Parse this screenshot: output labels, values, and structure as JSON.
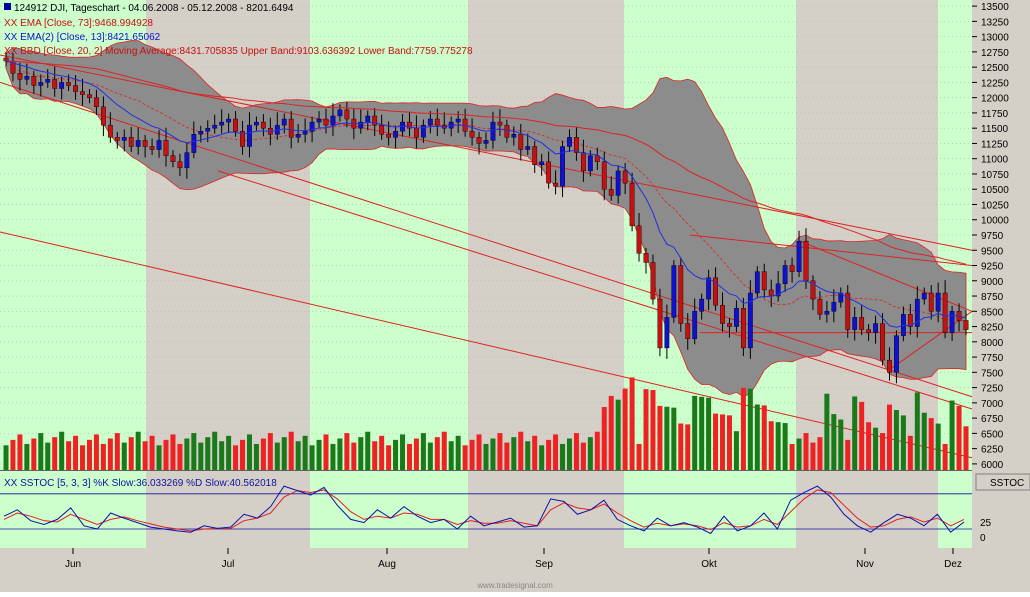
{
  "chart_data": {
    "type": "candlestick",
    "header": {
      "symbol_line": "124912 DJI, Tageschart - 04.06.2008 - 05.12.2008 - 8201.6494",
      "ema73": "EMA [Close, 73]:9468.994928",
      "ema13": "EMA(2) [Close, 13]:8421.65062",
      "bbd": "BBD [Close, 20, 2] Moving Average:8431.705835 Upper Band:9103.636392 Lower Band:7759.775278",
      "prefix": "XX"
    },
    "price_axis": {
      "ticks": [
        6000,
        6250,
        6500,
        6750,
        7000,
        7250,
        7500,
        7750,
        8000,
        8250,
        8500,
        8750,
        9000,
        9250,
        9500,
        9750,
        10000,
        10250,
        10500,
        10750,
        11000,
        11250,
        11500,
        11750,
        12000,
        12250,
        12500,
        12750,
        13000,
        13250,
        13500
      ],
      "ylim": [
        5900,
        13600
      ]
    },
    "months": [
      "Jun",
      "Jul",
      "Aug",
      "Sep",
      "Okt",
      "Nov",
      "Dez"
    ],
    "candles_close": [
      12600,
      12400,
      12300,
      12350,
      12200,
      12250,
      12300,
      12150,
      12250,
      12200,
      12100,
      12050,
      12000,
      11850,
      11550,
      11350,
      11300,
      11350,
      11200,
      11300,
      11200,
      11150,
      11300,
      11050,
      10950,
      10850,
      11100,
      11400,
      11450,
      11500,
      11550,
      11600,
      11650,
      11450,
      11200,
      11550,
      11600,
      11500,
      11400,
      11550,
      11650,
      11350,
      11400,
      11450,
      11600,
      11650,
      11550,
      11700,
      11800,
      11650,
      11500,
      11600,
      11700,
      11550,
      11400,
      11350,
      11450,
      11600,
      11500,
      11350,
      11550,
      11650,
      11550,
      11500,
      11600,
      11650,
      11450,
      11350,
      11250,
      11300,
      11600,
      11550,
      11350,
      11400,
      11150,
      11200,
      10900,
      10950,
      10600,
      10550,
      11200,
      11350,
      11100,
      10800,
      11050,
      10950,
      10500,
      10400,
      10800,
      10600,
      9900,
      9450,
      9300,
      8700,
      7900,
      8400,
      9250,
      8300,
      8050,
      8500,
      8700,
      9050,
      8600,
      8300,
      8250,
      8550,
      7900,
      8800,
      9150,
      8850,
      8750,
      8950,
      9250,
      9150,
      9650,
      9000,
      8700,
      8450,
      8500,
      8650,
      8800,
      8200,
      8400,
      8200,
      8150,
      8300,
      7700,
      7500,
      8100,
      8450,
      8250,
      8700,
      8800,
      8500,
      8800,
      8150,
      8500,
      8350,
      8200
    ],
    "volume_axis": {
      "ylim": [
        0,
        5
      ]
    },
    "stoch": {
      "label": "SSTOC [5, 3, 3] %K Slow:36.033269 %D Slow:40.562018",
      "k_label": "%K Slow",
      "d_label": "%D Slow",
      "axis_title": "SSTOC",
      "ticks": [
        "25",
        "0"
      ],
      "k": [
        45,
        55,
        38,
        32,
        40,
        58,
        30,
        25,
        50,
        42,
        35,
        28,
        25,
        22,
        20,
        30,
        26,
        28,
        48,
        42,
        60,
        92,
        85,
        78,
        90,
        62,
        40,
        35,
        55,
        42,
        60,
        45,
        35,
        40,
        25,
        45,
        30,
        36,
        42,
        28,
        30,
        72,
        68,
        48,
        55,
        70,
        40,
        30,
        22,
        42,
        30,
        35,
        28,
        18,
        45,
        22,
        30,
        50,
        25,
        70,
        82,
        92,
        75,
        48,
        30,
        20,
        35,
        48,
        42,
        30,
        48,
        20,
        36
      ],
      "d": [
        40,
        50,
        45,
        38,
        36,
        48,
        40,
        32,
        40,
        44,
        38,
        33,
        28,
        25,
        22,
        25,
        26,
        26,
        38,
        42,
        50,
        75,
        85,
        82,
        86,
        72,
        52,
        40,
        45,
        42,
        50,
        48,
        40,
        40,
        32,
        38,
        34,
        34,
        38,
        34,
        30,
        55,
        66,
        58,
        55,
        64,
        50,
        38,
        28,
        34,
        30,
        33,
        30,
        24,
        35,
        28,
        30,
        40,
        32,
        52,
        72,
        86,
        82,
        62,
        42,
        28,
        30,
        40,
        44,
        36,
        42,
        30,
        40
      ]
    },
    "watermark": "www.tradesignal.com",
    "colors": {
      "up": "#1010d0",
      "down": "#c81010",
      "band_fill": "#8c8c8c",
      "vol_up": "#1a7a1a",
      "vol_down": "#ee2222",
      "trend": "#dd2222",
      "ema13": "#2030e0",
      "stoch_k": "#1010a0",
      "stoch_d": "#e02020",
      "bg_green": "#ccffcc",
      "bg_gray": "#d4d0c8"
    }
  }
}
